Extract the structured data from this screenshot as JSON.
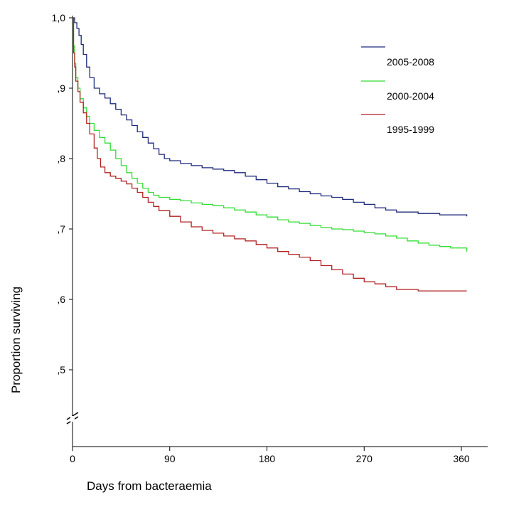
{
  "chart_data": {
    "type": "line",
    "title": "",
    "xlabel": "Days from bacteraemia",
    "ylabel": "Proportion surviving",
    "xlim": [
      0,
      365
    ],
    "ylim": [
      0.4,
      1.0
    ],
    "x_ticks": [
      {
        "value": 0,
        "label": "0"
      },
      {
        "value": 90,
        "label": "90"
      },
      {
        "value": 180,
        "label": "180"
      },
      {
        "value": 270,
        "label": "270"
      },
      {
        "value": 360,
        "label": "360"
      }
    ],
    "y_ticks": [
      {
        "value": 1.0,
        "label": "1,0"
      },
      {
        "value": 0.9,
        "label": ",9"
      },
      {
        "value": 0.8,
        "label": ",8"
      },
      {
        "value": 0.7,
        "label": ",7"
      },
      {
        "value": 0.6,
        "label": ",6"
      },
      {
        "value": 0.5,
        "label": ",5"
      }
    ],
    "axis_break": "y",
    "grid": false,
    "legend_position": "top-right",
    "series": [
      {
        "name": "2005-2008",
        "color": "#1f2a7a",
        "x": [
          0,
          2,
          4,
          6,
          8,
          10,
          13,
          16,
          20,
          25,
          30,
          35,
          40,
          45,
          50,
          55,
          60,
          65,
          70,
          75,
          80,
          85,
          90,
          100,
          110,
          120,
          130,
          140,
          150,
          160,
          170,
          180,
          190,
          200,
          210,
          220,
          230,
          240,
          250,
          260,
          270,
          280,
          290,
          300,
          320,
          340,
          365
        ],
        "y": [
          1.0,
          0.993,
          0.985,
          0.975,
          0.962,
          0.948,
          0.93,
          0.915,
          0.9,
          0.892,
          0.886,
          0.878,
          0.87,
          0.862,
          0.855,
          0.847,
          0.838,
          0.83,
          0.822,
          0.814,
          0.806,
          0.8,
          0.797,
          0.793,
          0.79,
          0.787,
          0.785,
          0.783,
          0.78,
          0.775,
          0.77,
          0.765,
          0.76,
          0.757,
          0.753,
          0.75,
          0.747,
          0.745,
          0.742,
          0.738,
          0.735,
          0.73,
          0.727,
          0.724,
          0.722,
          0.72,
          0.718
        ]
      },
      {
        "name": "2000-2004",
        "color": "#33dd33",
        "x": [
          0,
          1,
          2,
          3,
          5,
          7,
          10,
          13,
          16,
          20,
          25,
          30,
          35,
          40,
          45,
          50,
          55,
          60,
          65,
          70,
          75,
          80,
          90,
          100,
          110,
          120,
          130,
          140,
          150,
          160,
          170,
          180,
          190,
          200,
          210,
          220,
          230,
          240,
          250,
          260,
          270,
          280,
          290,
          300,
          310,
          320,
          330,
          340,
          350,
          365
        ],
        "y": [
          1.0,
          0.96,
          0.935,
          0.915,
          0.9,
          0.885,
          0.872,
          0.86,
          0.85,
          0.84,
          0.83,
          0.822,
          0.812,
          0.8,
          0.79,
          0.78,
          0.772,
          0.765,
          0.758,
          0.752,
          0.748,
          0.745,
          0.742,
          0.74,
          0.737,
          0.735,
          0.733,
          0.73,
          0.727,
          0.724,
          0.72,
          0.717,
          0.713,
          0.71,
          0.708,
          0.705,
          0.702,
          0.7,
          0.699,
          0.697,
          0.695,
          0.693,
          0.69,
          0.687,
          0.683,
          0.68,
          0.677,
          0.675,
          0.673,
          0.668
        ]
      },
      {
        "name": "1995-1999",
        "color": "#b22222",
        "x": [
          0,
          1,
          2,
          3,
          5,
          7,
          10,
          13,
          16,
          20,
          23,
          26,
          30,
          35,
          40,
          45,
          50,
          55,
          60,
          65,
          70,
          75,
          80,
          90,
          100,
          110,
          120,
          130,
          140,
          150,
          160,
          170,
          180,
          190,
          200,
          210,
          220,
          230,
          240,
          250,
          260,
          270,
          280,
          290,
          300,
          320,
          340,
          365
        ],
        "y": [
          1.0,
          0.95,
          0.93,
          0.91,
          0.895,
          0.88,
          0.865,
          0.85,
          0.835,
          0.815,
          0.8,
          0.788,
          0.78,
          0.775,
          0.772,
          0.768,
          0.764,
          0.758,
          0.752,
          0.745,
          0.738,
          0.732,
          0.726,
          0.718,
          0.71,
          0.703,
          0.698,
          0.694,
          0.69,
          0.686,
          0.683,
          0.678,
          0.673,
          0.668,
          0.664,
          0.66,
          0.655,
          0.648,
          0.642,
          0.636,
          0.63,
          0.625,
          0.622,
          0.618,
          0.614,
          0.612,
          0.612,
          0.612
        ]
      }
    ]
  }
}
